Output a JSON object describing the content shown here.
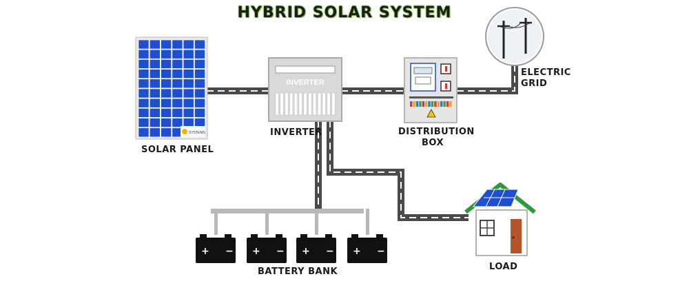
{
  "title": "HYBRID SOLAR SYSTEM",
  "labels": {
    "solar_panel": "SOLAR PANEL",
    "inverter": "INVERTER",
    "inverter_box_text": "INVERTER",
    "distribution_box_line1": "DISTRIBUTION",
    "distribution_box_line2": "BOX",
    "electric_grid_line1": "ELECTRIC",
    "electric_grid_line2": "GRID",
    "battery_bank": "BATTERY BANK",
    "load": "LOAD",
    "panel_brand": "SYSTEMS"
  },
  "colors": {
    "title_glow": "#7ec242",
    "panel_blue": "#1f4fd1",
    "cable": "#4a4a4a",
    "roof_green": "#2e9b3a",
    "door": "#b5542a"
  }
}
